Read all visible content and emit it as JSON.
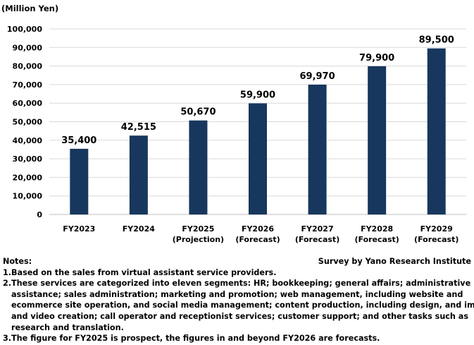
{
  "chart_data": {
    "type": "bar",
    "unit_label": "(Million Yen)",
    "categories": [
      [
        "FY2023"
      ],
      [
        "FY2024"
      ],
      [
        "FY2025",
        "(Projection)"
      ],
      [
        "FY2026",
        "(Forecast)"
      ],
      [
        "FY2027",
        "(Forecast)"
      ],
      [
        "FY2028",
        "(Forecast)"
      ],
      [
        "FY2029",
        "(Forecast)"
      ]
    ],
    "values": [
      35400,
      42515,
      50670,
      59900,
      69970,
      79900,
      89500
    ],
    "value_labels": [
      "35,400",
      "42,515",
      "50,670",
      "59,900",
      "69,970",
      "79,900",
      "89,500"
    ],
    "ylim": [
      0,
      100000
    ],
    "yticks": [
      0,
      10000,
      20000,
      30000,
      40000,
      50000,
      60000,
      70000,
      80000,
      90000,
      100000
    ],
    "ytick_labels": [
      "0",
      "10,000",
      "20,000",
      "30,000",
      "40,000",
      "50,000",
      "60,000",
      "70,000",
      "80,000",
      "90,000",
      "100,000"
    ],
    "grid": true,
    "bar_color": "#17375e"
  },
  "notes": {
    "heading": "Notes:",
    "source": "Survey by Yano Research Institute",
    "items": [
      {
        "num": "1.",
        "text": "Based on the sales from virtual assistant service providers."
      },
      {
        "num": "2.",
        "text": "These services are categorized into eleven segments: HR; bookkeeping; general affairs; administrative assistance; sales administration; marketing and promotion; web management, including website and ecommerce site operation, and social media management; content production, including design, and image and video creation; call operator and receptionist services; customer support; and other tasks such as research and translation."
      },
      {
        "num": "3.",
        "text": "The figure for FY2025 is prospect, the figures in and beyond FY2026 are forecasts."
      }
    ]
  }
}
